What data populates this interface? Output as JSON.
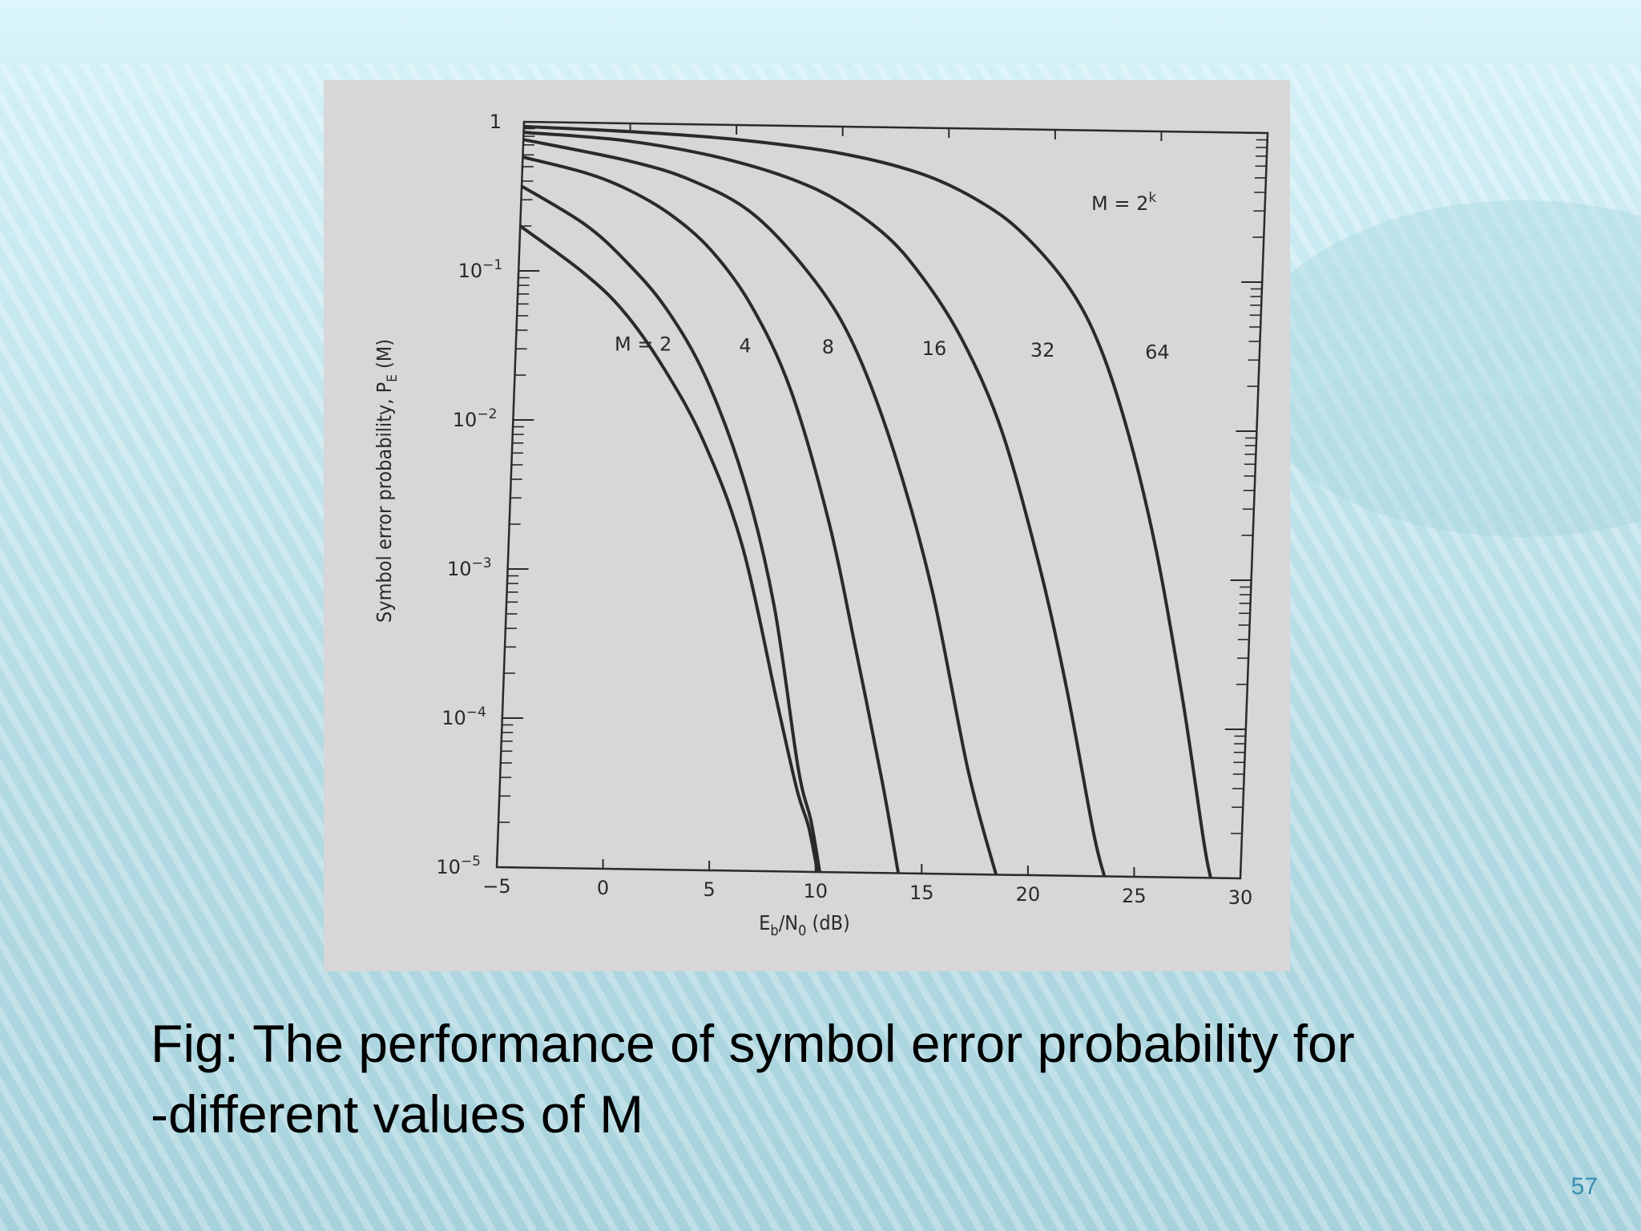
{
  "slide": {
    "caption_line1": "Fig: The performance of symbol error probability for",
    "caption_line2": "-different values of M",
    "page_number": "57"
  },
  "colors": {
    "figure_background": "#d8d6d8",
    "curve_color": "#2a2a2a",
    "page_number_color": "#3a8fb0"
  },
  "chart_data": {
    "type": "line",
    "title": "",
    "xlabel": "Eb/N0 (dB)",
    "ylabel": "Symbol error probability, PE(M)",
    "annotation": "M = 2k",
    "x_scale": "linear",
    "y_scale": "log",
    "xlim": [
      -5,
      30
    ],
    "ylim": [
      1e-05,
      1
    ],
    "x_ticks": [
      -5,
      0,
      5,
      10,
      15,
      20,
      25,
      30
    ],
    "x_tick_labels": [
      "−5",
      "0",
      "5",
      "10",
      "15",
      "20",
      "25",
      "30"
    ],
    "y_ticks": [
      1,
      0.1,
      0.01,
      0.001,
      0.0001,
      1e-05
    ],
    "y_tick_labels": [
      {
        "base": "1",
        "exp": ""
      },
      {
        "base": "10",
        "exp": "−1"
      },
      {
        "base": "10",
        "exp": "−2"
      },
      {
        "base": "10",
        "exp": "−3"
      },
      {
        "base": "10",
        "exp": "−4"
      },
      {
        "base": "10",
        "exp": "−5"
      }
    ],
    "grid": false,
    "series": [
      {
        "name": "M = 2",
        "label": "M = 2",
        "label_x": 1,
        "label_y": 0.03,
        "x": [
          -5,
          -2,
          0,
          2,
          4,
          6,
          8,
          9,
          9.6,
          10.1
        ],
        "y": [
          0.2,
          0.1,
          0.055,
          0.023,
          0.0075,
          0.0015,
          0.00012,
          3.5e-05,
          2e-05,
          1e-05
        ]
      },
      {
        "name": "4",
        "label": "4",
        "label_x": 5.8,
        "label_y": 0.03,
        "x": [
          -5,
          -2,
          0,
          2,
          4,
          6,
          7.6,
          9,
          9.7,
          10.2
        ],
        "y": [
          0.37,
          0.21,
          0.12,
          0.058,
          0.02,
          0.004,
          0.0006,
          5e-05,
          2.2e-05,
          1e-05
        ]
      },
      {
        "name": "8",
        "label": "8",
        "label_x": 9.7,
        "label_y": 0.03,
        "x": [
          -5,
          -2,
          0,
          2,
          4,
          6,
          8,
          10,
          11.5,
          13,
          13.9
        ],
        "y": [
          0.58,
          0.46,
          0.36,
          0.25,
          0.145,
          0.062,
          0.017,
          0.0023,
          0.00032,
          4e-05,
          1e-05
        ]
      },
      {
        "name": "16",
        "label": "16",
        "label_x": 14.7,
        "label_y": 0.03,
        "x": [
          -5,
          0,
          3,
          6,
          9,
          11,
          13,
          15,
          17,
          18.5
        ],
        "y": [
          0.76,
          0.56,
          0.42,
          0.25,
          0.09,
          0.032,
          0.0065,
          0.0008,
          5e-05,
          1e-05
        ]
      },
      {
        "name": "32",
        "label": "32",
        "label_x": 19.8,
        "label_y": 0.03,
        "x": [
          -5,
          0,
          5,
          9,
          12,
          14,
          16,
          18,
          20,
          21.5,
          23,
          23.6
        ],
        "y": [
          0.85,
          0.76,
          0.57,
          0.37,
          0.2,
          0.1,
          0.038,
          0.0095,
          0.0012,
          0.00018,
          2e-05,
          1e-05
        ]
      },
      {
        "name": "64",
        "label": "64",
        "label_x": 25.2,
        "label_y": 0.03,
        "x": [
          -5,
          0,
          5,
          10,
          14,
          17,
          19,
          21,
          22.5,
          24,
          25.5,
          27,
          28.2,
          28.6
        ],
        "y": [
          0.93,
          0.88,
          0.8,
          0.66,
          0.48,
          0.3,
          0.18,
          0.085,
          0.035,
          0.009,
          0.0015,
          0.00015,
          1.8e-05,
          1e-05
        ]
      }
    ]
  }
}
